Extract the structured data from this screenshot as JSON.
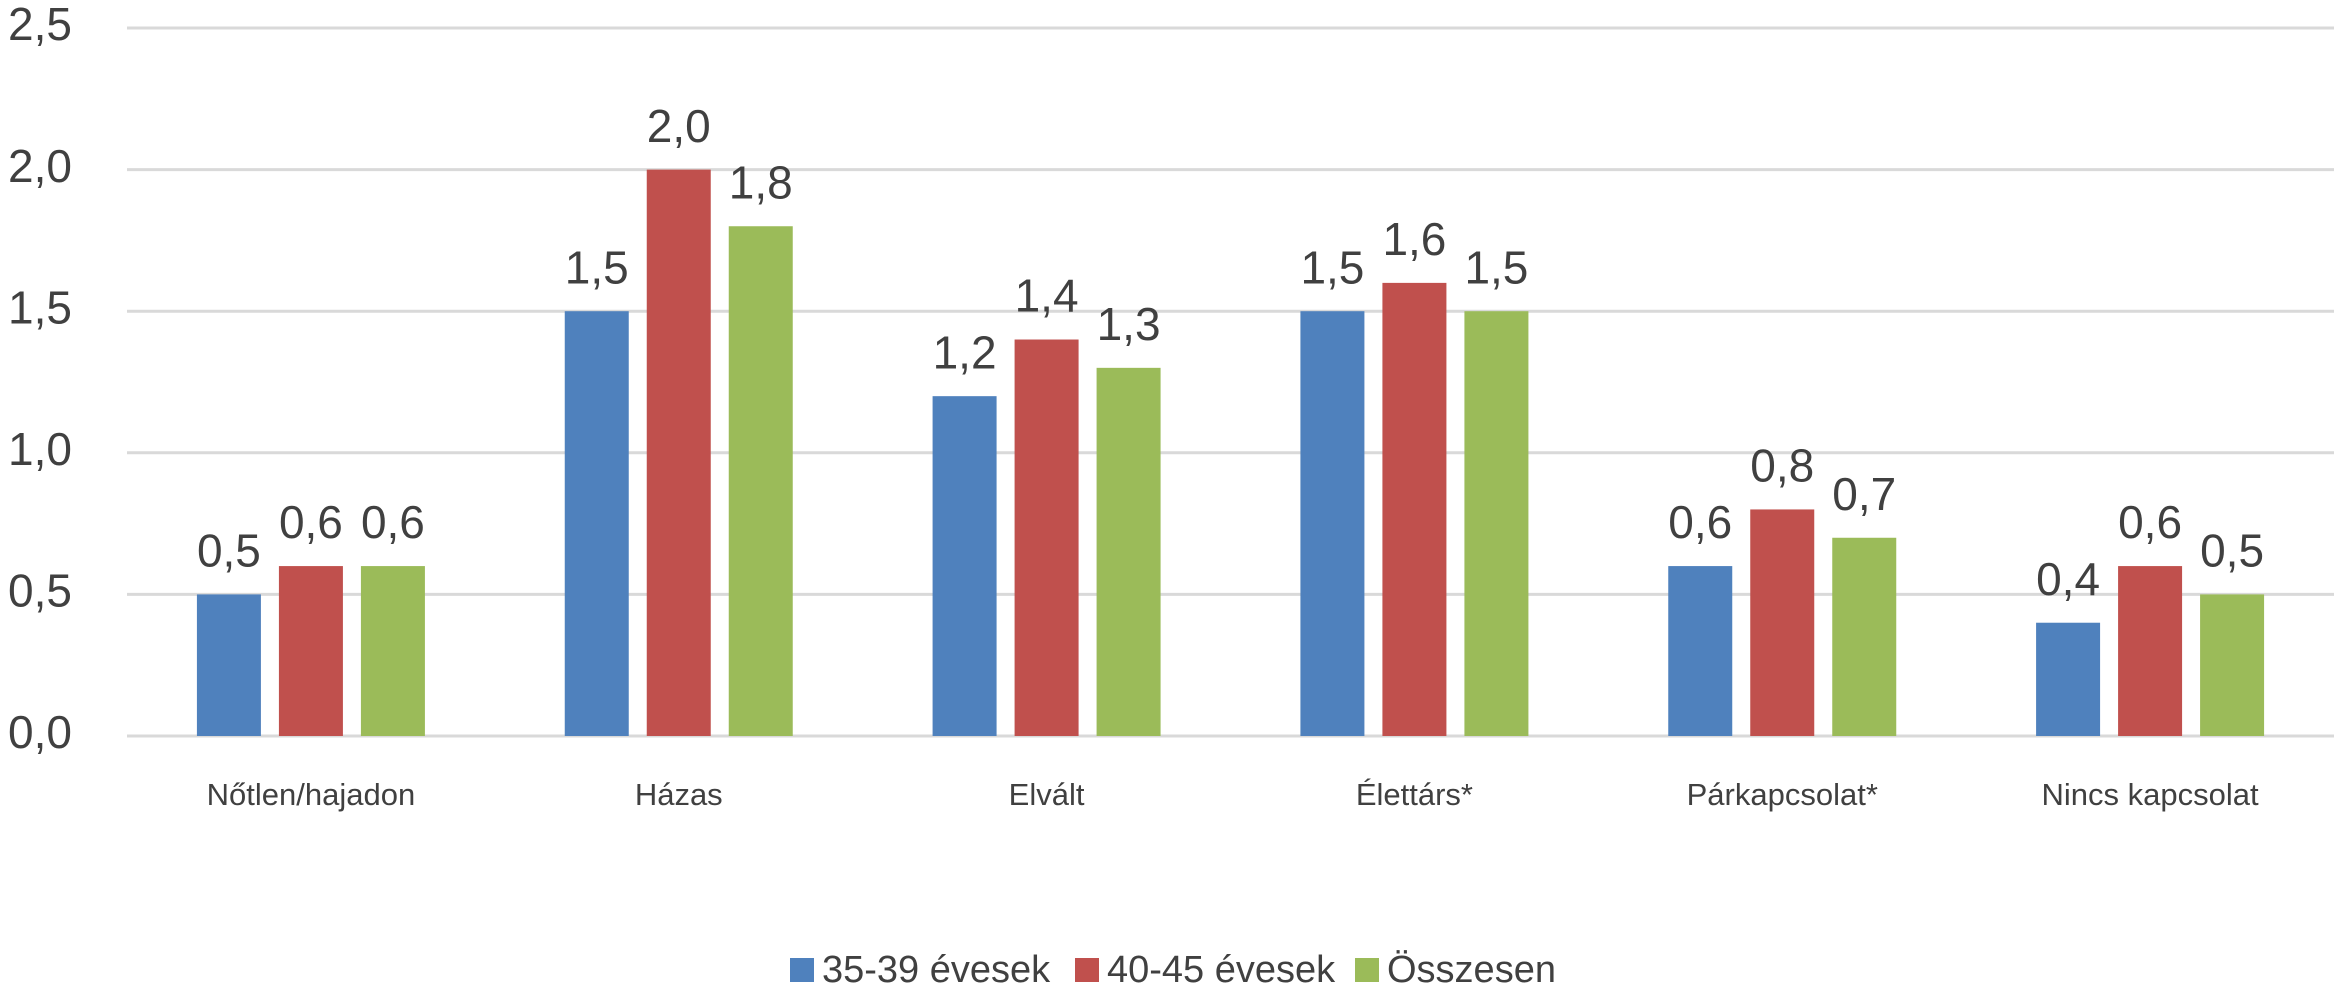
{
  "chart_data": {
    "type": "bar",
    "categories": [
      "Nőtlen/hajadon",
      "Házas",
      "Elvált",
      "Élettárs*",
      "Párkapcsolat*",
      "Nincs kapcsolat"
    ],
    "series": [
      {
        "name": "35-39 évesek",
        "color": "#4f81bd",
        "values": [
          0.5,
          1.5,
          1.2,
          1.5,
          0.6,
          0.4
        ],
        "value_labels": [
          "0,5",
          "1,5",
          "1,2",
          "1,5",
          "0,6",
          "0,4"
        ]
      },
      {
        "name": "40-45 évesek",
        "color": "#c0504d",
        "values": [
          0.6,
          2.0,
          1.4,
          1.6,
          0.8,
          0.6
        ],
        "value_labels": [
          "0,6",
          "2,0",
          "1,4",
          "1,6",
          "0,8",
          "0,6"
        ]
      },
      {
        "name": "Összesen",
        "color": "#9bbb59",
        "values": [
          0.6,
          1.8,
          1.3,
          1.5,
          0.7,
          0.5
        ],
        "value_labels": [
          "0,6",
          "1,8",
          "1,3",
          "1,5",
          "0,7",
          "0,5"
        ]
      }
    ],
    "ylim": [
      0,
      2.5
    ],
    "yticks": [
      {
        "value": 0,
        "label": "0,0"
      },
      {
        "value": 0.5,
        "label": "0,5"
      },
      {
        "value": 1,
        "label": "1,0"
      },
      {
        "value": 1.5,
        "label": "1,5"
      },
      {
        "value": 2,
        "label": "2,0"
      },
      {
        "value": 2.5,
        "label": "2,5"
      }
    ],
    "grid": true,
    "legend": "bottom"
  }
}
